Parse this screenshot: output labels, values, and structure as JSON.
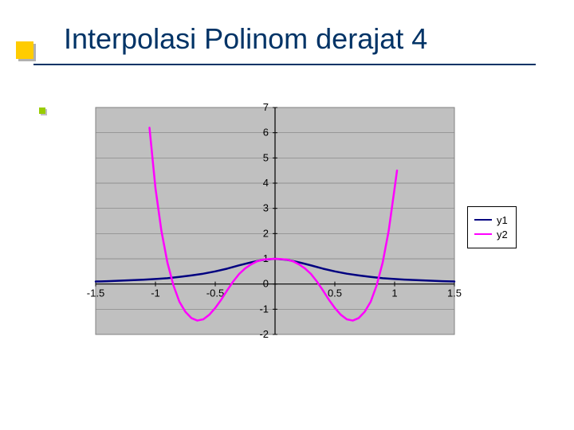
{
  "title": "Interpolasi Polinom derajat 4",
  "chart": {
    "type": "line",
    "background_color": "#ffffff",
    "plot_background": "#c0c0c0",
    "plot_border_color": "#808080",
    "grid_color": "#808080",
    "axis_color": "#000000",
    "xlim": [
      -1.5,
      1.5
    ],
    "ylim": [
      -2,
      7
    ],
    "xticks": [
      -1.5,
      -1,
      -0.5,
      0,
      0.5,
      1,
      1.5
    ],
    "yticks": [
      -2,
      -1,
      0,
      1,
      2,
      3,
      4,
      5,
      6,
      7
    ],
    "tick_fontsize": 13,
    "series": [
      {
        "name": "y1",
        "color": "#000080",
        "line_width": 2.5,
        "points": [
          [
            -1.5,
            0.1
          ],
          [
            -1.4,
            0.11
          ],
          [
            -1.3,
            0.13
          ],
          [
            -1.2,
            0.15
          ],
          [
            -1.1,
            0.17
          ],
          [
            -1.0,
            0.2
          ],
          [
            -0.9,
            0.23
          ],
          [
            -0.8,
            0.28
          ],
          [
            -0.7,
            0.34
          ],
          [
            -0.6,
            0.41
          ],
          [
            -0.5,
            0.5
          ],
          [
            -0.4,
            0.61
          ],
          [
            -0.3,
            0.74
          ],
          [
            -0.2,
            0.86
          ],
          [
            -0.1,
            0.96
          ],
          [
            0.0,
            1.0
          ],
          [
            0.1,
            0.96
          ],
          [
            0.2,
            0.86
          ],
          [
            0.3,
            0.74
          ],
          [
            0.4,
            0.61
          ],
          [
            0.5,
            0.5
          ],
          [
            0.6,
            0.41
          ],
          [
            0.7,
            0.34
          ],
          [
            0.8,
            0.28
          ],
          [
            0.9,
            0.23
          ],
          [
            1.0,
            0.2
          ],
          [
            1.1,
            0.17
          ],
          [
            1.2,
            0.15
          ],
          [
            1.3,
            0.13
          ],
          [
            1.4,
            0.11
          ],
          [
            1.5,
            0.1
          ]
        ]
      },
      {
        "name": "y2",
        "color": "#ff00ff",
        "line_width": 2.5,
        "points": [
          [
            -1.05,
            6.2
          ],
          [
            -1.0,
            3.8
          ],
          [
            -0.95,
            2.1
          ],
          [
            -0.9,
            0.85
          ],
          [
            -0.85,
            -0.05
          ],
          [
            -0.8,
            -0.7
          ],
          [
            -0.75,
            -1.1
          ],
          [
            -0.7,
            -1.35
          ],
          [
            -0.65,
            -1.45
          ],
          [
            -0.6,
            -1.4
          ],
          [
            -0.55,
            -1.22
          ],
          [
            -0.5,
            -0.95
          ],
          [
            -0.45,
            -0.62
          ],
          [
            -0.4,
            -0.25
          ],
          [
            -0.35,
            0.1
          ],
          [
            -0.3,
            0.4
          ],
          [
            -0.25,
            0.62
          ],
          [
            -0.2,
            0.78
          ],
          [
            -0.15,
            0.9
          ],
          [
            -0.1,
            0.97
          ],
          [
            -0.05,
            0.99
          ],
          [
            0.0,
            1.0
          ],
          [
            0.05,
            0.99
          ],
          [
            0.1,
            0.97
          ],
          [
            0.15,
            0.9
          ],
          [
            0.2,
            0.78
          ],
          [
            0.25,
            0.62
          ],
          [
            0.3,
            0.4
          ],
          [
            0.35,
            0.1
          ],
          [
            0.4,
            -0.25
          ],
          [
            0.45,
            -0.62
          ],
          [
            0.5,
            -0.95
          ],
          [
            0.55,
            -1.22
          ],
          [
            0.6,
            -1.4
          ],
          [
            0.65,
            -1.45
          ],
          [
            0.7,
            -1.35
          ],
          [
            0.75,
            -1.1
          ],
          [
            0.8,
            -0.7
          ],
          [
            0.85,
            -0.05
          ],
          [
            0.9,
            0.85
          ],
          [
            0.95,
            2.1
          ],
          [
            1.0,
            3.8
          ],
          [
            1.02,
            4.5
          ]
        ]
      }
    ],
    "legend": {
      "entries": [
        {
          "label": "y1",
          "color": "#000080",
          "line_width": 2.5
        },
        {
          "label": "y2",
          "color": "#ff00ff",
          "line_width": 2.5
        }
      ]
    }
  },
  "accent": {
    "square_color": "#ffcc00",
    "square_shadow": "#b0b0b0",
    "line_color": "#003366",
    "small_square_color": "#99cc00"
  }
}
